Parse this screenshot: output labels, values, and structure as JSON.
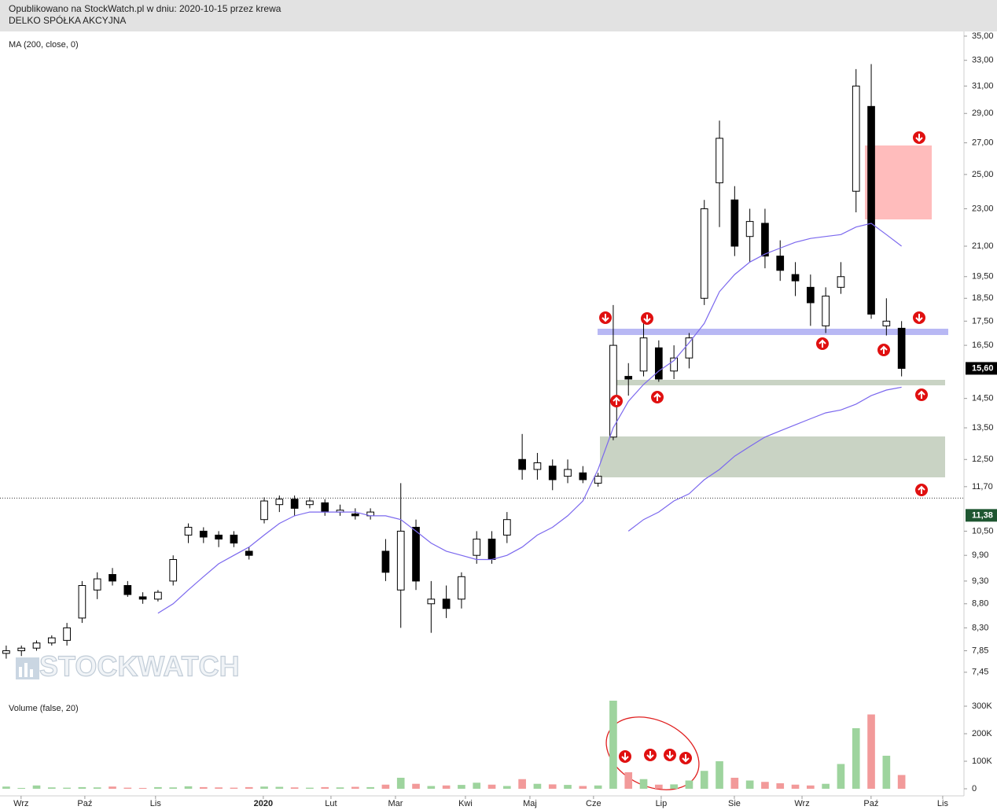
{
  "header": {
    "line1": "Opublikowano na StockWatch.pl w dniu: 2020-10-15 przez krewa",
    "line2": "DELKO SPÓŁKA AKCYJNA"
  },
  "chart_data": [
    {
      "type": "candlestick",
      "watermark": "STOCKWATCH",
      "log_scale": true,
      "ylim": [
        7.1,
        35.4
      ],
      "yticks": [
        {
          "value": 35,
          "label": "35,00"
        },
        {
          "value": 33,
          "label": "33,00"
        },
        {
          "value": 31,
          "label": "31,00"
        },
        {
          "value": 29,
          "label": "29,00"
        },
        {
          "value": 27,
          "label": "27,00"
        },
        {
          "value": 25,
          "label": "25,00"
        },
        {
          "value": 23,
          "label": "23,00"
        },
        {
          "value": 21,
          "label": "21,00"
        },
        {
          "value": 19.5,
          "label": "19,50"
        },
        {
          "value": 18.5,
          "label": "18,50"
        },
        {
          "value": 17.5,
          "label": "17,50"
        },
        {
          "value": 16.5,
          "label": "16,50"
        },
        {
          "value": 14.5,
          "label": "14,50"
        },
        {
          "value": 13.5,
          "label": "13,50"
        },
        {
          "value": 12.5,
          "label": "12,50"
        },
        {
          "value": 11.7,
          "label": "11,70"
        },
        {
          "value": 10.5,
          "label": "10,50"
        },
        {
          "value": 9.9,
          "label": "9,90"
        },
        {
          "value": 9.3,
          "label": "9,30"
        },
        {
          "value": 8.8,
          "label": "8,80"
        },
        {
          "value": 8.3,
          "label": "8,30"
        },
        {
          "value": 7.85,
          "label": "7,85"
        },
        {
          "value": 7.45,
          "label": "7,45"
        }
      ],
      "xlim": [
        -0.41,
        63.06
      ],
      "xticks": [
        {
          "value": 0.98,
          "label": "Wrz"
        },
        {
          "value": 5.18,
          "label": "Paź"
        },
        {
          "value": 9.84,
          "label": "Lis"
        },
        {
          "value": 16.94,
          "label": "2020"
        },
        {
          "value": 21.4,
          "label": "Lut"
        },
        {
          "value": 25.65,
          "label": "Mar"
        },
        {
          "value": 30.26,
          "label": "Kwi"
        },
        {
          "value": 34.51,
          "label": "Maj"
        },
        {
          "value": 38.7,
          "label": "Cze"
        },
        {
          "value": 43.16,
          "label": "Lip"
        },
        {
          "value": 47.98,
          "label": "Sie"
        },
        {
          "value": 52.44,
          "label": "Wrz"
        },
        {
          "value": 56.99,
          "label": "Paź"
        },
        {
          "value": 61.71,
          "label": "Lis"
        }
      ],
      "open": [
        7.8,
        7.85,
        7.9,
        8.0,
        8.05,
        8.5,
        9.1,
        9.45,
        9.2,
        8.95,
        8.9,
        9.3,
        10.4,
        10.5,
        10.4,
        10.4,
        10.0,
        10.8,
        11.2,
        11.35,
        11.2,
        11.25,
        11.0,
        10.95,
        10.9,
        10.0,
        9.1,
        10.6,
        8.8,
        8.9,
        8.9,
        9.9,
        10.3,
        10.4,
        12.5,
        12.2,
        12.3,
        12.0,
        12.1,
        11.8,
        13.2,
        15.3,
        15.5,
        16.4,
        15.5,
        16.0,
        18.5,
        24.5,
        23.5,
        21.5,
        22.2,
        20.5,
        19.6,
        19.0,
        17.3,
        19.0,
        24.0,
        29.5,
        17.3,
        17.2
      ],
      "high": [
        7.95,
        7.95,
        8.05,
        8.15,
        8.4,
        9.3,
        9.5,
        9.6,
        9.3,
        9.05,
        9.1,
        9.9,
        10.7,
        10.6,
        10.5,
        10.5,
        10.1,
        11.4,
        11.45,
        11.45,
        11.4,
        11.35,
        11.2,
        11.1,
        11.1,
        10.3,
        11.8,
        10.8,
        9.3,
        9.2,
        9.5,
        10.5,
        10.5,
        11.0,
        13.3,
        12.7,
        12.5,
        12.5,
        12.3,
        12.1,
        18.2,
        15.8,
        17.4,
        16.7,
        16.5,
        17.0,
        23.5,
        28.5,
        24.3,
        23.0,
        23.0,
        21.3,
        20.2,
        19.6,
        19.0,
        20.2,
        32.3,
        32.7,
        18.5,
        17.5
      ],
      "low": [
        7.7,
        7.75,
        7.85,
        7.95,
        7.95,
        8.4,
        8.9,
        9.2,
        8.95,
        8.8,
        8.85,
        9.2,
        10.2,
        10.2,
        10.1,
        10.1,
        9.8,
        10.7,
        11.0,
        10.9,
        11.1,
        10.9,
        10.9,
        10.8,
        10.8,
        9.3,
        8.3,
        9.1,
        8.2,
        8.5,
        8.7,
        9.7,
        9.7,
        10.2,
        11.9,
        11.9,
        11.6,
        11.8,
        11.8,
        11.7,
        13.1,
        14.6,
        15.3,
        15.1,
        15.2,
        15.6,
        18.2,
        22.0,
        20.5,
        20.2,
        19.9,
        19.3,
        18.6,
        17.3,
        17.0,
        18.7,
        22.8,
        17.6,
        16.9,
        15.3
      ],
      "close": [
        7.85,
        7.9,
        8.0,
        8.1,
        8.3,
        9.2,
        9.35,
        9.3,
        9.0,
        8.9,
        9.05,
        9.8,
        10.6,
        10.35,
        10.3,
        10.2,
        9.9,
        11.3,
        11.35,
        11.1,
        11.3,
        11.0,
        11.05,
        10.9,
        11.0,
        9.5,
        10.5,
        9.3,
        8.9,
        8.7,
        9.4,
        10.3,
        9.8,
        10.8,
        12.2,
        12.4,
        11.9,
        12.2,
        11.9,
        12.0,
        16.5,
        15.2,
        16.8,
        15.2,
        16.0,
        16.8,
        23.0,
        27.3,
        21.0,
        22.3,
        20.5,
        19.8,
        19.3,
        18.3,
        18.6,
        19.5,
        31.0,
        17.8,
        17.5,
        15.6
      ],
      "up_color": "#ffffff",
      "down_color": "#000000",
      "lines": [
        {
          "name": "MA (200, close, 0)",
          "color": "#7b68ee",
          "values": [
            null,
            null,
            null,
            null,
            null,
            null,
            null,
            null,
            null,
            null,
            null,
            null,
            null,
            null,
            null,
            null,
            null,
            null,
            null,
            null,
            null,
            null,
            null,
            null,
            null,
            null,
            null,
            null,
            null,
            null,
            null,
            null,
            null,
            null,
            null,
            null,
            null,
            null,
            null,
            null,
            null,
            10.5,
            10.8,
            11.0,
            11.3,
            11.5,
            11.9,
            12.2,
            12.6,
            12.9,
            13.2,
            13.4,
            13.6,
            13.8,
            14.0,
            14.1,
            14.3,
            14.6,
            14.8,
            14.9
          ]
        },
        {
          "color": "#7b68ee",
          "values": [
            null,
            null,
            null,
            null,
            null,
            null,
            null,
            null,
            null,
            null,
            8.6,
            8.8,
            9.1,
            9.4,
            9.7,
            9.9,
            10.1,
            10.4,
            10.7,
            10.9,
            11.0,
            11.0,
            11.0,
            11.0,
            10.9,
            10.9,
            10.8,
            10.5,
            10.2,
            10.0,
            9.9,
            9.8,
            9.8,
            9.9,
            10.1,
            10.4,
            10.6,
            10.9,
            11.3,
            12.2,
            13.5,
            14.4,
            15.0,
            15.5,
            15.9,
            16.6,
            17.4,
            18.8,
            19.6,
            20.2,
            20.6,
            20.9,
            21.2,
            21.4,
            21.5,
            21.6,
            22.0,
            22.2,
            21.6,
            21.0
          ]
        }
      ],
      "price_markers": [
        {
          "value": 15.6,
          "label": "15,60",
          "color": "#000000"
        },
        {
          "value": 11.38,
          "label": "11,38",
          "color": "#1e5631"
        }
      ]
    },
    {
      "type": "bar",
      "title": "Volume (false, 20)",
      "values": [
        8000,
        3000,
        12000,
        5000,
        4000,
        6000,
        5000,
        8000,
        4000,
        3000,
        6000,
        5000,
        9000,
        6000,
        5000,
        4000,
        6000,
        8000,
        7000,
        5000,
        4000,
        6000,
        5000,
        7000,
        6000,
        15000,
        40000,
        18000,
        10000,
        12000,
        14000,
        22000,
        15000,
        10000,
        35000,
        18000,
        16000,
        14000,
        10000,
        12000,
        320000,
        60000,
        35000,
        15000,
        16000,
        30000,
        65000,
        100000,
        40000,
        30000,
        25000,
        20000,
        15000,
        12000,
        18000,
        90000,
        220000,
        270000,
        120000,
        50000
      ],
      "ylim": [
        0,
        320000
      ],
      "yticks": [
        0,
        {
          "value": 100000,
          "label": "100K"
        },
        {
          "value": 200000,
          "label": "200K"
        },
        {
          "value": 300000,
          "label": "300K"
        }
      ],
      "up_color": "#9ed49e",
      "down_color": "#f29a9a"
    }
  ]
}
